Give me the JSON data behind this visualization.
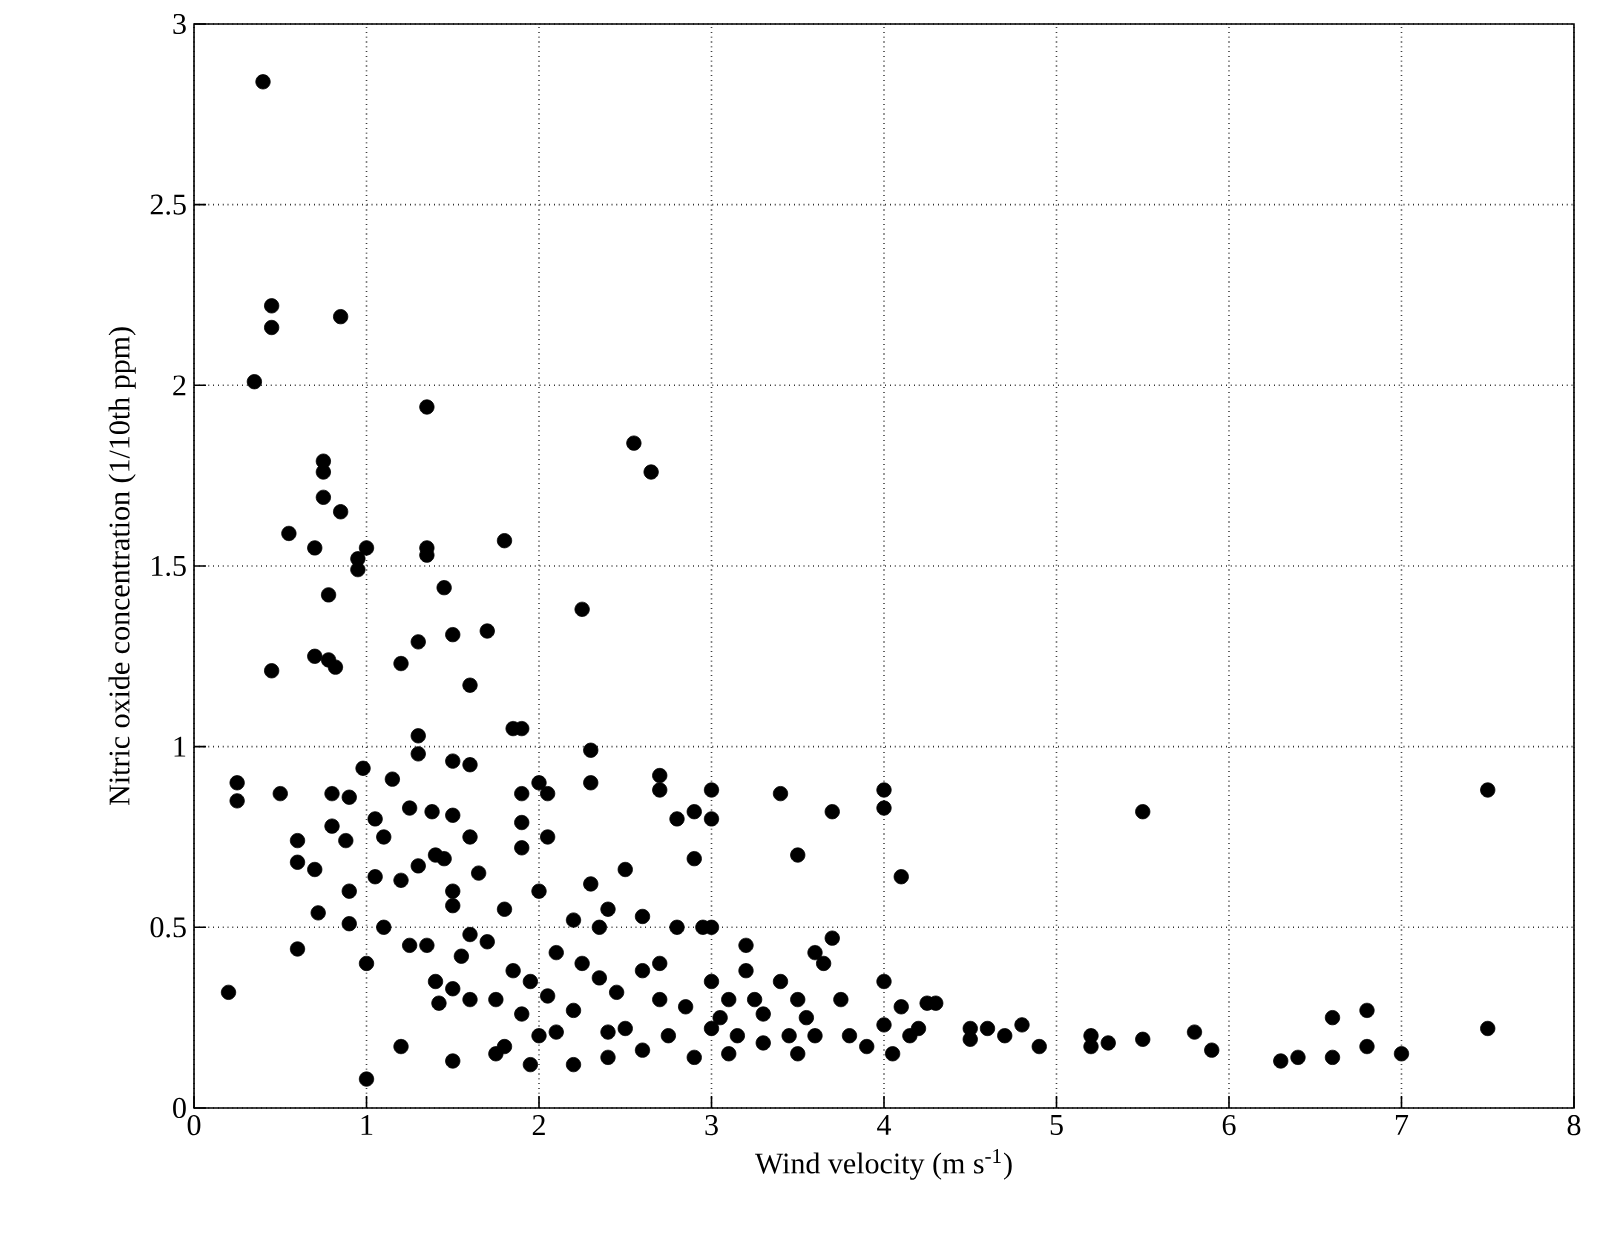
{
  "chart_data": {
    "type": "scatter",
    "xlabel": "Wind velocity (m s$^{-1}$)",
    "ylabel": "Nitric oxide concentration (1/10th ppm)",
    "xlim": [
      0,
      8
    ],
    "ylim": [
      0,
      3
    ],
    "xticks": [
      0,
      1,
      2,
      3,
      4,
      5,
      6,
      7,
      8
    ],
    "yticks": [
      0,
      0.5,
      1,
      1.5,
      2,
      2.5,
      3
    ],
    "grid": true,
    "series": [
      {
        "color": "#000000",
        "x": [
          0.2,
          0.25,
          0.25,
          0.35,
          0.4,
          0.45,
          0.45,
          0.45,
          0.5,
          0.55,
          0.6,
          0.6,
          0.6,
          0.7,
          0.7,
          0.7,
          0.72,
          0.75,
          0.75,
          0.75,
          0.78,
          0.78,
          0.8,
          0.8,
          0.82,
          0.85,
          0.85,
          0.88,
          0.9,
          0.9,
          0.9,
          0.95,
          0.95,
          0.98,
          1.0,
          1.0,
          1.0,
          1.05,
          1.05,
          1.1,
          1.1,
          1.15,
          1.2,
          1.2,
          1.2,
          1.25,
          1.25,
          1.3,
          1.3,
          1.3,
          1.3,
          1.35,
          1.35,
          1.35,
          1.35,
          1.38,
          1.4,
          1.4,
          1.42,
          1.45,
          1.45,
          1.5,
          1.5,
          1.5,
          1.5,
          1.5,
          1.5,
          1.5,
          1.55,
          1.6,
          1.6,
          1.6,
          1.6,
          1.6,
          1.65,
          1.7,
          1.7,
          1.75,
          1.75,
          1.8,
          1.8,
          1.85,
          1.85,
          1.9,
          1.9,
          1.9,
          1.9,
          1.9,
          1.95,
          1.95,
          2.0,
          2.0,
          2.0,
          2.05,
          2.05,
          2.05,
          2.1,
          2.1,
          2.2,
          2.2,
          2.25,
          2.25,
          2.3,
          2.3,
          2.3,
          2.35,
          2.35,
          2.4,
          2.4,
          2.45,
          2.5,
          2.5,
          2.55,
          2.6,
          2.6,
          2.65,
          2.7,
          2.7,
          2.7,
          2.7,
          2.75,
          2.8,
          2.8,
          2.85,
          2.9,
          2.9,
          2.95,
          3.0,
          3.0,
          3.0,
          3.0,
          3.0,
          3.05,
          3.1,
          3.15,
          3.2,
          3.2,
          3.25,
          3.3,
          3.4,
          3.4,
          3.45,
          3.5,
          3.5,
          3.55,
          3.6,
          3.65,
          3.7,
          3.7,
          3.75,
          3.8,
          3.9,
          4.0,
          4.0,
          4.0,
          4.0,
          4.05,
          4.1,
          4.1,
          4.15,
          4.2,
          4.25,
          4.3,
          4.5,
          4.5,
          4.6,
          4.7,
          4.8,
          4.9,
          5.2,
          5.2,
          5.3,
          5.5,
          5.5,
          5.8,
          5.9,
          6.3,
          6.4,
          6.6,
          6.6,
          6.8,
          6.8,
          7.0,
          7.5,
          7.5,
          2.6,
          2.9,
          3.1,
          3.3,
          3.5,
          3.6,
          2.2,
          2.4,
          1.8
        ],
        "values": [
          0.32,
          0.9,
          0.85,
          2.01,
          2.84,
          2.22,
          2.16,
          1.21,
          0.87,
          1.59,
          0.74,
          0.68,
          0.44,
          1.55,
          1.25,
          0.66,
          0.54,
          1.79,
          1.76,
          1.69,
          1.42,
          1.24,
          0.87,
          0.78,
          1.22,
          2.19,
          1.65,
          0.74,
          0.86,
          0.6,
          0.51,
          1.52,
          1.49,
          0.94,
          1.55,
          0.4,
          0.08,
          0.8,
          0.64,
          0.75,
          0.5,
          0.91,
          0.17,
          0.63,
          1.23,
          0.83,
          0.45,
          1.29,
          1.03,
          0.98,
          0.67,
          0.45,
          1.94,
          1.55,
          1.53,
          0.82,
          0.7,
          0.35,
          0.29,
          1.44,
          0.69,
          0.96,
          0.81,
          0.6,
          0.56,
          0.33,
          0.13,
          1.31,
          0.42,
          1.17,
          0.95,
          0.75,
          0.48,
          0.3,
          0.65,
          1.32,
          0.46,
          0.3,
          0.15,
          1.57,
          0.55,
          1.05,
          0.38,
          1.05,
          0.87,
          0.79,
          0.72,
          0.26,
          0.12,
          0.35,
          0.9,
          0.6,
          0.2,
          0.87,
          0.75,
          0.31,
          0.43,
          0.21,
          0.52,
          0.12,
          0.4,
          1.38,
          0.99,
          0.9,
          0.62,
          0.5,
          0.36,
          0.55,
          0.21,
          0.32,
          0.66,
          0.22,
          1.84,
          0.53,
          0.38,
          1.76,
          0.92,
          0.88,
          0.4,
          0.3,
          0.2,
          0.8,
          0.5,
          0.28,
          0.69,
          0.82,
          0.5,
          0.88,
          0.8,
          0.5,
          0.35,
          0.22,
          0.25,
          0.3,
          0.2,
          0.45,
          0.38,
          0.3,
          0.18,
          0.87,
          0.35,
          0.2,
          0.7,
          0.3,
          0.25,
          0.43,
          0.4,
          0.82,
          0.47,
          0.3,
          0.2,
          0.17,
          0.88,
          0.83,
          0.35,
          0.23,
          0.15,
          0.64,
          0.28,
          0.2,
          0.22,
          0.29,
          0.29,
          0.22,
          0.19,
          0.22,
          0.2,
          0.23,
          0.17,
          0.2,
          0.17,
          0.18,
          0.19,
          0.82,
          0.21,
          0.16,
          0.13,
          0.14,
          0.25,
          0.14,
          0.27,
          0.17,
          0.15,
          0.88,
          0.22,
          0.16,
          0.14,
          0.15,
          0.26,
          0.15,
          0.2,
          0.27,
          0.14,
          0.17
        ]
      }
    ]
  }
}
